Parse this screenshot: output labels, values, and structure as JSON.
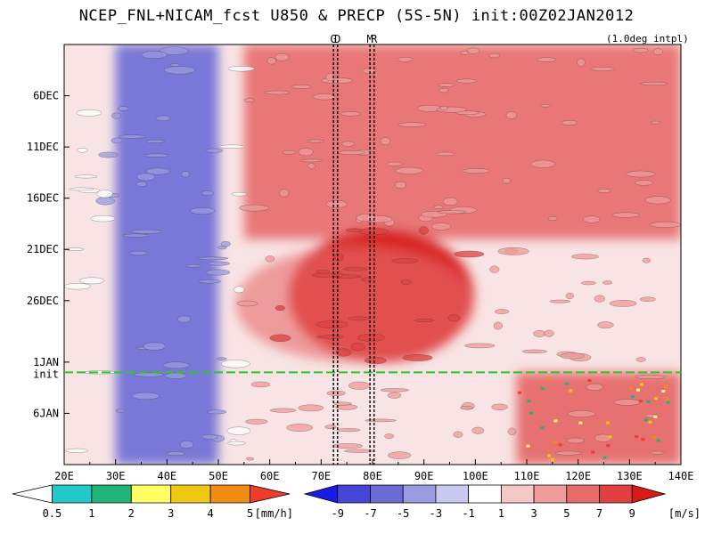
{
  "title": "NCEP_FNL+NICAM_fcst U850 & PRECP (5S-5N) init:00Z02JAN2012",
  "note": "(1.0deg intpl)",
  "chart_data": {
    "type": "heatmap",
    "title": "NCEP_FNL+NICAM_fcst U850 & PRECP (5S-5N) init:00Z02JAN2012",
    "xlabel": "",
    "ylabel": "",
    "x_ticks": [
      "20E",
      "30E",
      "40E",
      "50E",
      "60E",
      "70E",
      "80E",
      "90E",
      "100E",
      "110E",
      "120E",
      "130E",
      "140E"
    ],
    "x_range": [
      20,
      140
    ],
    "y_ticks": [
      "6DEC",
      "11DEC",
      "16DEC",
      "21DEC",
      "26DEC",
      "1JAN",
      "6JAN"
    ],
    "y_tick_days": [
      6,
      11,
      16,
      21,
      26,
      32,
      37
    ],
    "y_range_days": [
      1,
      42
    ],
    "init_label": "init",
    "init_day": 33,
    "markers": [
      {
        "label": "G",
        "lon": 72.4
      },
      {
        "label": "D",
        "lon": 73.2
      },
      {
        "label": "M",
        "lon": 79.5
      },
      {
        "label": "R",
        "lon": 80.3
      }
    ],
    "u850_colorbar": {
      "ticks": [
        "-9",
        "-7",
        "-5",
        "-3",
        "-1",
        "1",
        "3",
        "5",
        "7",
        "9"
      ],
      "unit": "[m/s]",
      "colors": [
        "#1a1ae6",
        "#4545d8",
        "#6b6bd6",
        "#9a9ae0",
        "#c8c8f0",
        "#ffffff",
        "#f5c8c8",
        "#f09a9a",
        "#e86b6b",
        "#e04040",
        "#d81a1a"
      ]
    },
    "precip_colorbar": {
      "ticks": [
        "0.5",
        "1",
        "2",
        "3",
        "4",
        "5"
      ],
      "unit": "[mm/h]",
      "colors": [
        "#ffffff",
        "#20c8c8",
        "#20b478",
        "#ffff64",
        "#f0c814",
        "#f08c14",
        "#f03c28"
      ]
    },
    "features": [
      {
        "name": "easterly band",
        "lon_range": [
          30,
          50
        ],
        "days": [
          1,
          42
        ],
        "u850": -7
      },
      {
        "name": "westerly band",
        "lon_range": [
          55,
          140
        ],
        "days": [
          1,
          20
        ],
        "u850": 4
      },
      {
        "name": "westerly burst",
        "lon_range": [
          62,
          98
        ],
        "days": [
          19,
          32
        ],
        "u850": 9
      },
      {
        "name": "forecast precipitation",
        "lon_range": [
          108,
          140
        ],
        "days": [
          33,
          42
        ],
        "precip": 3
      }
    ]
  }
}
